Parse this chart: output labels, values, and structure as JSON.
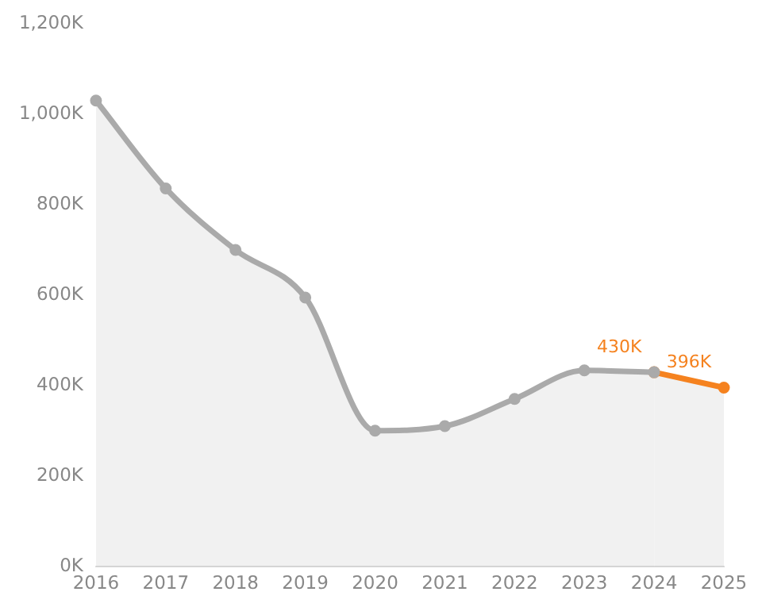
{
  "chart_data": {
    "type": "area",
    "categories": [
      "2016",
      "2017",
      "2018",
      "2019",
      "2020",
      "2021",
      "2022",
      "2023",
      "2024",
      "2025"
    ],
    "series": [
      {
        "color": "#aaaaaa",
        "values": [
          1030,
          836,
          700,
          595,
          301,
          311,
          371,
          434,
          430,
          null
        ]
      },
      {
        "color": "#f5821f",
        "values": [
          null,
          null,
          null,
          null,
          null,
          null,
          null,
          null,
          430,
          396
        ],
        "value_labels": [
          null,
          null,
          null,
          null,
          null,
          null,
          null,
          null,
          "430K",
          "396K"
        ]
      }
    ],
    "ylim": [
      0,
      1200
    ],
    "yticks": [
      {
        "value": 0,
        "label": "0K"
      },
      {
        "value": 200,
        "label": "200K"
      },
      {
        "value": 400,
        "label": "400K"
      },
      {
        "value": 600,
        "label": "600K"
      },
      {
        "value": 800,
        "label": "800K"
      },
      {
        "value": 1000,
        "label": "1,000K"
      },
      {
        "value": 1200,
        "label": "1,200K"
      }
    ],
    "grid": false,
    "legend": false,
    "marker": "circle",
    "line_style": "solid"
  }
}
